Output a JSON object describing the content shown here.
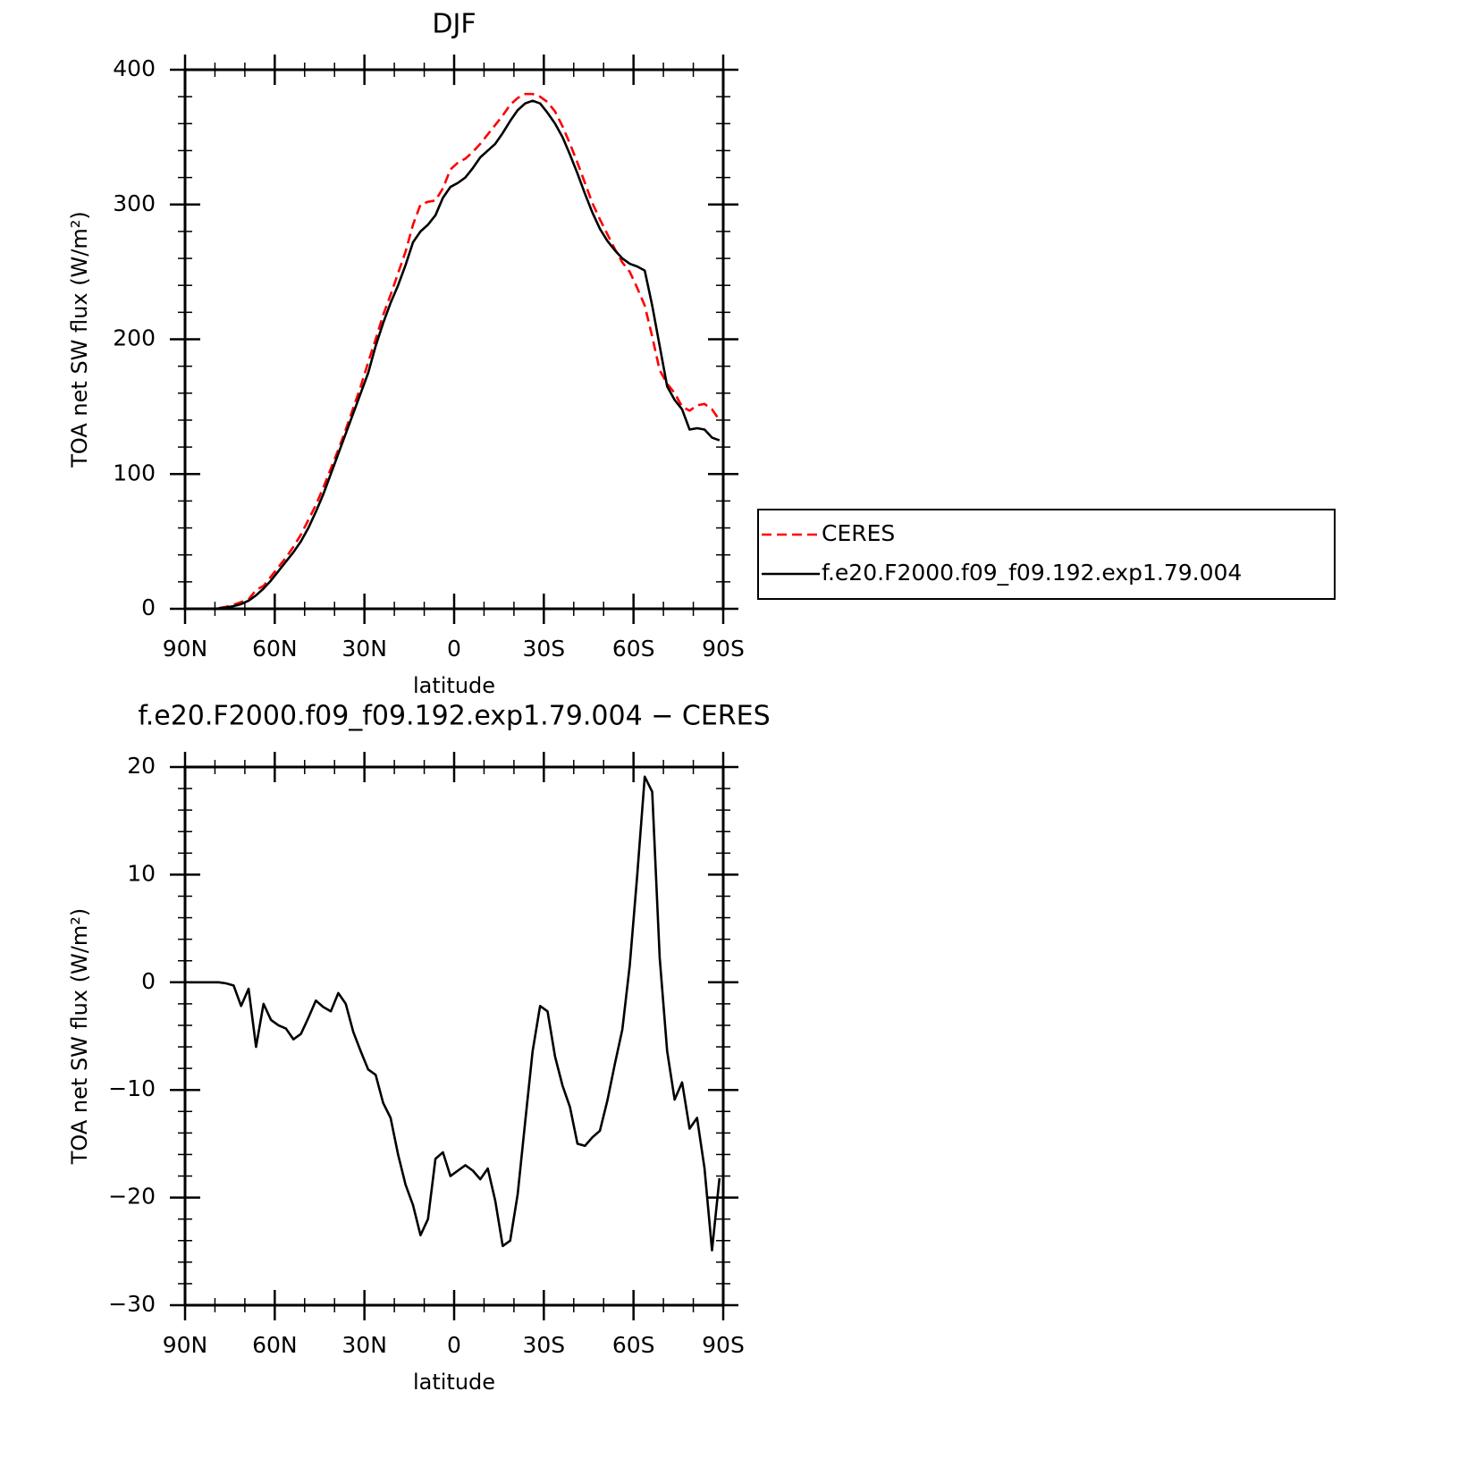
{
  "chart_data": [
    {
      "type": "line",
      "title": "DJF",
      "xlabel": "latitude",
      "ylabel": "TOA net SW flux (W/m²)",
      "x": [
        88.75,
        86.25,
        83.75,
        81.25,
        78.75,
        76.25,
        73.75,
        71.25,
        68.75,
        66.25,
        63.75,
        61.25,
        58.75,
        56.25,
        53.75,
        51.25,
        48.75,
        46.25,
        43.75,
        41.25,
        38.75,
        36.25,
        33.75,
        31.25,
        28.75,
        26.25,
        23.75,
        21.25,
        18.75,
        16.25,
        13.75,
        11.25,
        8.75,
        6.25,
        3.75,
        1.25,
        -1.25,
        -3.75,
        -6.25,
        -8.75,
        -11.25,
        -13.75,
        -16.25,
        -18.75,
        -21.25,
        -23.75,
        -26.25,
        -28.75,
        -31.25,
        -33.75,
        -36.25,
        -38.75,
        -41.25,
        -43.75,
        -46.25,
        -48.75,
        -51.25,
        -53.75,
        -56.25,
        -58.75,
        -61.25,
        -63.75,
        -66.25,
        -68.75,
        -71.25,
        -73.75,
        -76.25,
        -78.75,
        -81.25,
        -83.75,
        -86.25,
        -88.75
      ],
      "series": [
        {
          "name": "CERES",
          "color": "#ff0000",
          "linestyle": "dashed",
          "values": [
            0,
            0,
            0,
            0,
            0.5,
            1.5,
            3,
            5,
            7,
            14,
            17,
            24,
            31,
            38,
            46,
            55,
            66,
            77,
            90,
            104,
            118,
            133,
            149,
            165,
            183,
            200,
            218,
            233,
            249,
            265,
            285,
            300,
            302,
            303,
            312,
            326,
            331,
            334,
            339,
            345,
            352,
            359,
            366,
            374,
            379,
            382,
            382,
            380,
            376,
            369,
            358,
            345,
            331,
            316,
            301,
            289,
            278,
            267,
            257,
            250,
            238,
            225,
            202,
            177,
            167,
            160,
            150,
            147,
            151,
            152,
            148,
            140
          ]
        },
        {
          "name": "f.e20.F2000.f09_f09.192.exp1.79.004",
          "color": "#000000",
          "linestyle": "solid",
          "values": [
            0,
            0,
            0,
            0,
            0.3,
            1,
            2,
            3.5,
            6,
            10,
            15,
            21,
            28,
            35,
            42,
            50,
            60,
            72,
            85,
            100,
            115,
            130,
            145,
            160,
            175,
            195,
            212,
            227,
            240,
            255,
            272,
            280,
            285,
            292,
            305,
            313,
            316,
            320,
            327,
            335,
            340,
            345,
            353,
            362,
            370,
            375,
            377,
            375,
            368,
            360,
            350,
            337,
            323,
            308,
            294,
            282,
            273,
            266,
            260,
            256,
            254,
            251,
            225,
            195,
            165,
            155,
            148,
            133,
            134,
            133,
            127,
            125
          ]
        }
      ],
      "xlim": [
        90,
        -90
      ],
      "xticks": [
        {
          "value": 90,
          "label": "90N"
        },
        {
          "value": 60,
          "label": "60N"
        },
        {
          "value": 30,
          "label": "30N"
        },
        0,
        {
          "value": -30,
          "label": "30S"
        },
        {
          "value": -60,
          "label": "60S"
        },
        {
          "value": -90,
          "label": "90S"
        }
      ],
      "xminorticks": [
        80,
        70,
        50,
        40,
        20,
        10,
        -10,
        -20,
        -40,
        -50,
        -70,
        -80
      ],
      "ylim": [
        0,
        400
      ],
      "yticks": [
        0,
        100,
        200,
        300,
        400
      ],
      "yminorticks": [
        20,
        40,
        60,
        80,
        120,
        140,
        160,
        180,
        220,
        240,
        260,
        280,
        320,
        340,
        360,
        380
      ]
    },
    {
      "type": "line",
      "title": "f.e20.F2000.f09_f09.192.exp1.79.004 − CERES",
      "xlabel": "latitude",
      "ylabel": "TOA net SW flux (W/m²)",
      "x": [
        88.75,
        86.25,
        83.75,
        81.25,
        78.75,
        76.25,
        73.75,
        71.25,
        68.75,
        66.25,
        63.75,
        61.25,
        58.75,
        56.25,
        53.75,
        51.25,
        48.75,
        46.25,
        43.75,
        41.25,
        38.75,
        36.25,
        33.75,
        31.25,
        28.75,
        26.25,
        23.75,
        21.25,
        18.75,
        16.25,
        13.75,
        11.25,
        8.75,
        6.25,
        3.75,
        1.25,
        -1.25,
        -3.75,
        -6.25,
        -8.75,
        -11.25,
        -13.75,
        -16.25,
        -18.75,
        -21.25,
        -23.75,
        -26.25,
        -28.75,
        -31.25,
        -33.75,
        -36.25,
        -38.75,
        -41.25,
        -43.75,
        -46.25,
        -48.75,
        -51.25,
        -53.75,
        -56.25,
        -58.75,
        -61.25,
        -63.75,
        -66.25,
        -68.75,
        -71.25,
        -73.75,
        -76.25,
        -78.75,
        -81.25,
        -83.75,
        -86.25,
        -88.75
      ],
      "color": "#000000",
      "values": [
        0,
        0,
        0,
        0,
        0,
        -0.1,
        -0.3,
        -2.2,
        -0.6,
        -6,
        -2,
        -3.5,
        -4,
        -4.3,
        -5.3,
        -4.8,
        -3.3,
        -1.7,
        -2.3,
        -2.7,
        -1,
        -2,
        -4.6,
        -6.4,
        -8.1,
        -8.6,
        -11.2,
        -12.6,
        -16,
        -18.8,
        -20.7,
        -23.5,
        -22,
        -16.4,
        -15.8,
        -18,
        -17.5,
        -17,
        -17.5,
        -18.3,
        -17.3,
        -20.3,
        -24.5,
        -24,
        -19.7,
        -13,
        -6.4,
        -2.2,
        -2.7,
        -6.9,
        -9.6,
        -11.6,
        -15,
        -15.2,
        -14.4,
        -13.8,
        -11,
        -7.6,
        -4.4,
        1.6,
        10,
        19.1,
        17.7,
        2.3,
        -6.4,
        -10.9,
        -9.3,
        -13.6,
        -12.6,
        -17.3,
        -24.9,
        -18.2
      ],
      "xlim": [
        90,
        -90
      ],
      "xticks": [
        {
          "value": 90,
          "label": "90N"
        },
        {
          "value": 60,
          "label": "60N"
        },
        {
          "value": 30,
          "label": "30N"
        },
        0,
        {
          "value": -30,
          "label": "30S"
        },
        {
          "value": -60,
          "label": "60S"
        },
        {
          "value": -90,
          "label": "90S"
        }
      ],
      "xminorticks": [
        80,
        70,
        50,
        40,
        20,
        10,
        -10,
        -20,
        -40,
        -50,
        -70,
        -80
      ],
      "ylim": [
        -30,
        20
      ],
      "yticks": [
        {
          "value": -30,
          "label": "−30"
        },
        {
          "value": -20,
          "label": "−20"
        },
        {
          "value": -10,
          "label": "−10"
        },
        0,
        10,
        20
      ],
      "yminorticks": [
        -28,
        -26,
        -24,
        -22,
        -18,
        -16,
        -14,
        -12,
        -8,
        -6,
        -4,
        -2,
        2,
        4,
        6,
        8,
        12,
        14,
        16,
        18
      ]
    }
  ]
}
